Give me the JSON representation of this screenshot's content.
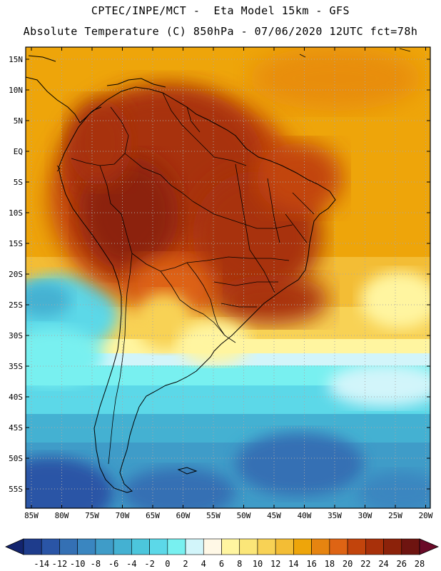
{
  "title_line1": "CPTEC/INPE/MCT -  Eta Model 15km - GFS",
  "title_line2": "Absolute Temperature (C) 850hPa - 07/06/2020 12UTC fct=78h",
  "lat_labels": [
    "15N",
    "10N",
    "5N",
    "EQ",
    "5S",
    "10S",
    "15S",
    "20S",
    "25S",
    "30S",
    "35S",
    "40S",
    "45S",
    "50S",
    "55S"
  ],
  "lon_labels": [
    "85W",
    "80W",
    "75W",
    "70W",
    "65W",
    "60W",
    "55W",
    "50W",
    "45W",
    "40W",
    "35W",
    "30W",
    "25W",
    "20W"
  ],
  "colorbar": {
    "labels": [
      "-14",
      "-12",
      "-10",
      "-8",
      "-6",
      "-4",
      "-2",
      "0",
      "2",
      "4",
      "6",
      "8",
      "10",
      "12",
      "14",
      "16",
      "18",
      "20",
      "22",
      "24",
      "26",
      "28"
    ],
    "colors": [
      "#1e3c8c",
      "#2a55a6",
      "#3470b4",
      "#3a86c0",
      "#3f9cc8",
      "#44b1d2",
      "#4cc6dc",
      "#5cd8e8",
      "#78f0f0",
      "#d2f5fa",
      "#fff8e6",
      "#fff5a0",
      "#fbe678",
      "#f8d255",
      "#f3bd35",
      "#eea50a",
      "#e68410",
      "#de6414",
      "#c2440c",
      "#a8300a",
      "#8c220a",
      "#6e1410"
    ],
    "under_color": "#13246e",
    "over_color": "#6a0a28"
  }
}
